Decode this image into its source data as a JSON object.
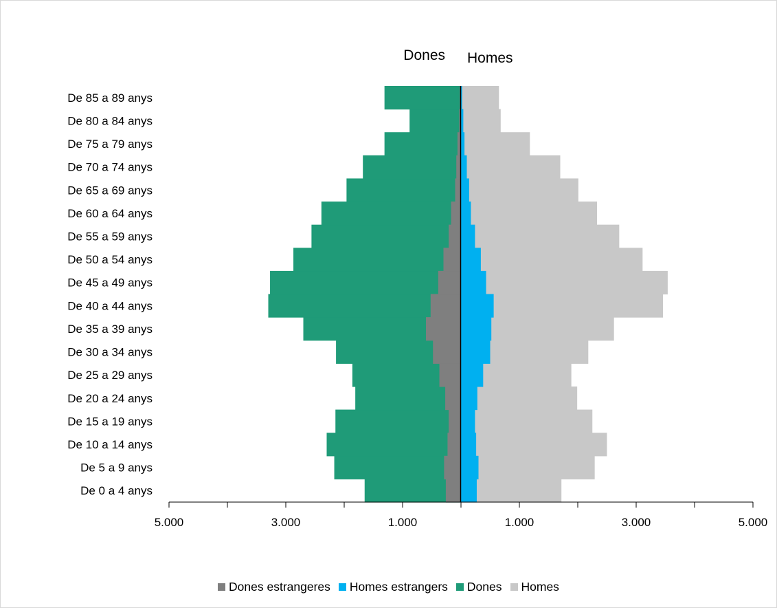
{
  "chart_data": {
    "type": "bar",
    "orientation": "horizontal-pyramid",
    "side_labels": {
      "left": "Dones",
      "right": "Homes"
    },
    "categories": [
      "De 0 a 4 anys",
      "De 5 a 9 anys",
      "De 10 a 14 anys",
      "De 15 a 19 anys",
      "De 20 a 24 anys",
      "De 25 a 29 anys",
      "De 30 a 34 anys",
      "De 35 a 39 anys",
      "De 40 a 44 anys",
      "De 45 a 49 anys",
      "De 50 a 54 anys",
      "De 55 a 59 anys",
      "De 60 a 64 anys",
      "De 65 a 69 anys",
      "De 70 a 74 anys",
      "De 75 a 79 anys",
      "De 80 a 84 anys",
      "De 85 a 89 anys"
    ],
    "series": [
      {
        "name": "Dones estrangeres",
        "side": "left",
        "color": "#7f7f7f",
        "values": [
          260,
          290,
          230,
          210,
          270,
          370,
          480,
          600,
          520,
          390,
          300,
          210,
          170,
          100,
          80,
          60,
          30,
          20
        ]
      },
      {
        "name": "Homes estrangers",
        "side": "right",
        "color": "#00b0f0",
        "values": [
          270,
          300,
          260,
          240,
          280,
          380,
          500,
          520,
          560,
          430,
          340,
          240,
          170,
          140,
          100,
          60,
          40,
          20
        ]
      },
      {
        "name": "Dones",
        "side": "left",
        "color": "#1f9b78",
        "values": [
          1650,
          2170,
          2300,
          2150,
          1810,
          1860,
          2140,
          2700,
          3300,
          3270,
          2870,
          2560,
          2390,
          1960,
          1680,
          1310,
          880,
          1310
        ]
      },
      {
        "name": "Homes",
        "side": "right",
        "color": "#c8c8c8",
        "values": [
          1720,
          2290,
          2500,
          2250,
          1990,
          1890,
          2180,
          2620,
          3460,
          3540,
          3110,
          2710,
          2330,
          2010,
          1700,
          1180,
          680,
          650
        ]
      }
    ],
    "xlim": [
      -5000,
      5000
    ],
    "x_tick_labels": [
      {
        "value": -5000,
        "label": "5.000"
      },
      {
        "value": -3000,
        "label": "3.000"
      },
      {
        "value": -1000,
        "label": "1.000"
      },
      {
        "value": 1000,
        "label": "1.000"
      },
      {
        "value": 3000,
        "label": "3.000"
      },
      {
        "value": 5000,
        "label": "5.000"
      }
    ],
    "legend_position": "bottom",
    "grid": false
  }
}
